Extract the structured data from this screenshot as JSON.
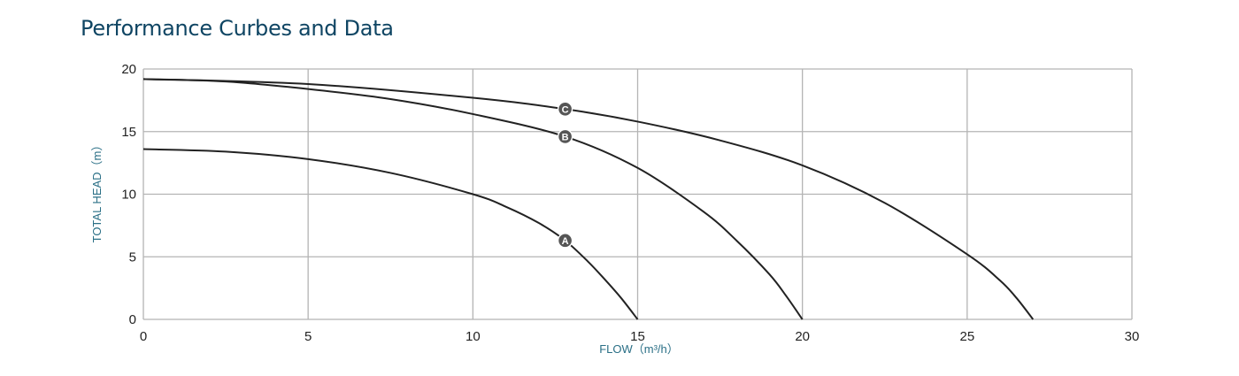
{
  "title": "Performance Curbes and Data",
  "chart_data": {
    "type": "line",
    "title": "",
    "xlabel": "FLOW（m³/h）",
    "ylabel": "TOTAL HEAD（m）",
    "xlim": [
      0,
      30
    ],
    "ylim": [
      0,
      20
    ],
    "xticks": [
      0,
      5,
      10,
      15,
      20,
      25,
      30
    ],
    "yticks": [
      0,
      5,
      10,
      15,
      20
    ],
    "grid": true,
    "series": [
      {
        "name": "A",
        "x": [
          0,
          2.5,
          5,
          7.5,
          10,
          11,
          12,
          12.8,
          13.5,
          14,
          14.5,
          15
        ],
        "y": [
          13.6,
          13.4,
          12.8,
          11.7,
          10,
          9.0,
          7.7,
          6.3,
          4.6,
          3.2,
          1.7,
          0
        ]
      },
      {
        "name": "B",
        "x": [
          0,
          2.5,
          5,
          7.5,
          10,
          12.8,
          15,
          17,
          18,
          19,
          19.5,
          20
        ],
        "y": [
          19.2,
          19.0,
          18.4,
          17.6,
          16.4,
          14.6,
          12.1,
          8.6,
          6.3,
          3.6,
          1.9,
          0
        ]
      },
      {
        "name": "C",
        "x": [
          0,
          5,
          10,
          12.8,
          15,
          17.5,
          20,
          22.5,
          25,
          26,
          26.5,
          27
        ],
        "y": [
          19.2,
          18.8,
          17.7,
          16.8,
          15.8,
          14.3,
          12.3,
          9.3,
          5.2,
          3.1,
          1.7,
          0
        ]
      }
    ],
    "markers": [
      {
        "label": "A",
        "x": 12.8,
        "y": 6.3
      },
      {
        "label": "B",
        "x": 12.8,
        "y": 14.6
      },
      {
        "label": "C",
        "x": 12.8,
        "y": 16.8
      }
    ]
  }
}
